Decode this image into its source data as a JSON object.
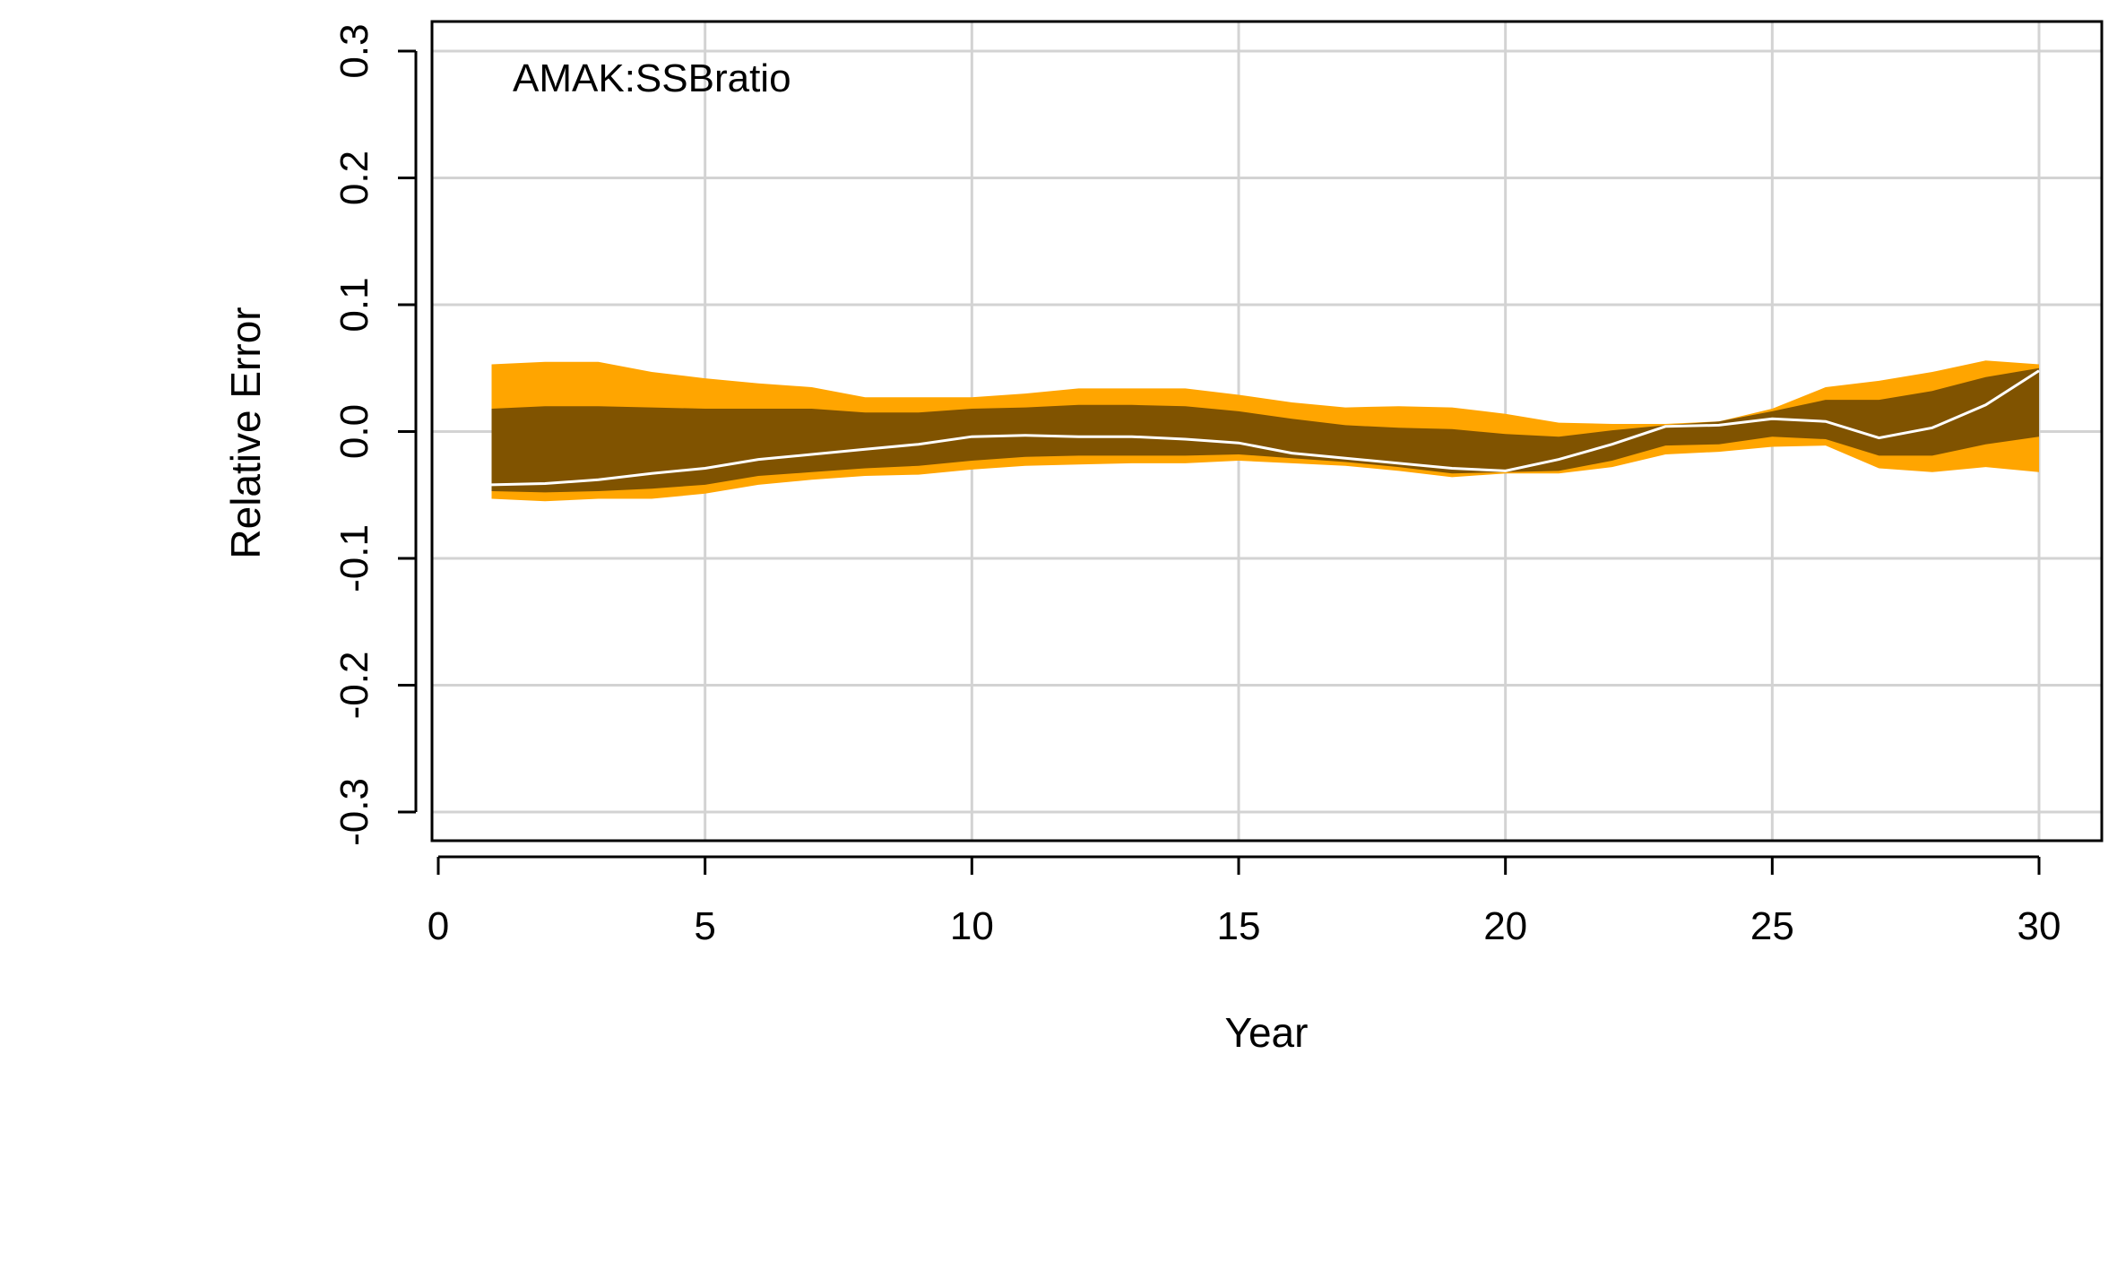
{
  "chart_data": {
    "type": "area",
    "annotation": "AMAK:SSBratio",
    "xlabel": "Year",
    "ylabel": "Relative Error",
    "xlim": [
      0,
      30
    ],
    "ylim": [
      -0.3,
      0.3
    ],
    "xticks": [
      "0",
      "5",
      "10",
      "15",
      "20",
      "25",
      "30"
    ],
    "yticks": [
      "-0.3",
      "-0.2",
      "-0.1",
      "0.0",
      "0.1",
      "0.2",
      "0.3"
    ],
    "grid": true,
    "x": [
      1,
      2,
      3,
      4,
      5,
      6,
      7,
      8,
      9,
      10,
      11,
      12,
      13,
      14,
      15,
      16,
      17,
      18,
      19,
      20,
      21,
      22,
      23,
      24,
      25,
      26,
      27,
      28,
      29,
      30
    ],
    "series": [
      {
        "role": "outer-band",
        "color": "#FFA500",
        "upper": [
          0.053,
          0.055,
          0.055,
          0.047,
          0.042,
          0.038,
          0.035,
          0.027,
          0.027,
          0.027,
          0.03,
          0.034,
          0.034,
          0.034,
          0.029,
          0.023,
          0.019,
          0.02,
          0.019,
          0.014,
          0.007,
          0.006,
          0.006,
          0.008,
          0.018,
          0.035,
          0.04,
          0.047,
          0.056,
          0.053
        ],
        "lower": [
          -0.053,
          -0.055,
          -0.053,
          -0.053,
          -0.049,
          -0.042,
          -0.038,
          -0.035,
          -0.034,
          -0.03,
          -0.027,
          -0.026,
          -0.025,
          -0.025,
          -0.023,
          -0.025,
          -0.027,
          -0.031,
          -0.036,
          -0.033,
          -0.033,
          -0.028,
          -0.018,
          -0.016,
          -0.012,
          -0.011,
          -0.029,
          -0.032,
          -0.028,
          -0.032
        ]
      },
      {
        "role": "inner-band",
        "color": "#805300",
        "upper": [
          0.018,
          0.02,
          0.02,
          0.019,
          0.018,
          0.018,
          0.018,
          0.015,
          0.015,
          0.018,
          0.019,
          0.021,
          0.021,
          0.02,
          0.016,
          0.01,
          0.005,
          0.003,
          0.002,
          -0.002,
          -0.004,
          0.001,
          0.005,
          0.008,
          0.016,
          0.025,
          0.025,
          0.032,
          0.043,
          0.05
        ],
        "lower": [
          -0.047,
          -0.048,
          -0.047,
          -0.045,
          -0.042,
          -0.035,
          -0.032,
          -0.029,
          -0.027,
          -0.023,
          -0.02,
          -0.019,
          -0.019,
          -0.019,
          -0.018,
          -0.021,
          -0.024,
          -0.028,
          -0.033,
          -0.032,
          -0.031,
          -0.023,
          -0.011,
          -0.01,
          -0.004,
          -0.006,
          -0.019,
          -0.019,
          -0.01,
          -0.004
        ]
      },
      {
        "role": "median",
        "color": "#ffffff",
        "values": [
          -0.042,
          -0.041,
          -0.038,
          -0.033,
          -0.029,
          -0.022,
          -0.018,
          -0.014,
          -0.01,
          -0.004,
          -0.003,
          -0.004,
          -0.004,
          -0.006,
          -0.009,
          -0.017,
          -0.021,
          -0.025,
          -0.029,
          -0.031,
          -0.022,
          -0.01,
          0.004,
          0.005,
          0.01,
          0.008,
          -0.005,
          0.003,
          0.021,
          0.048
        ]
      }
    ]
  }
}
